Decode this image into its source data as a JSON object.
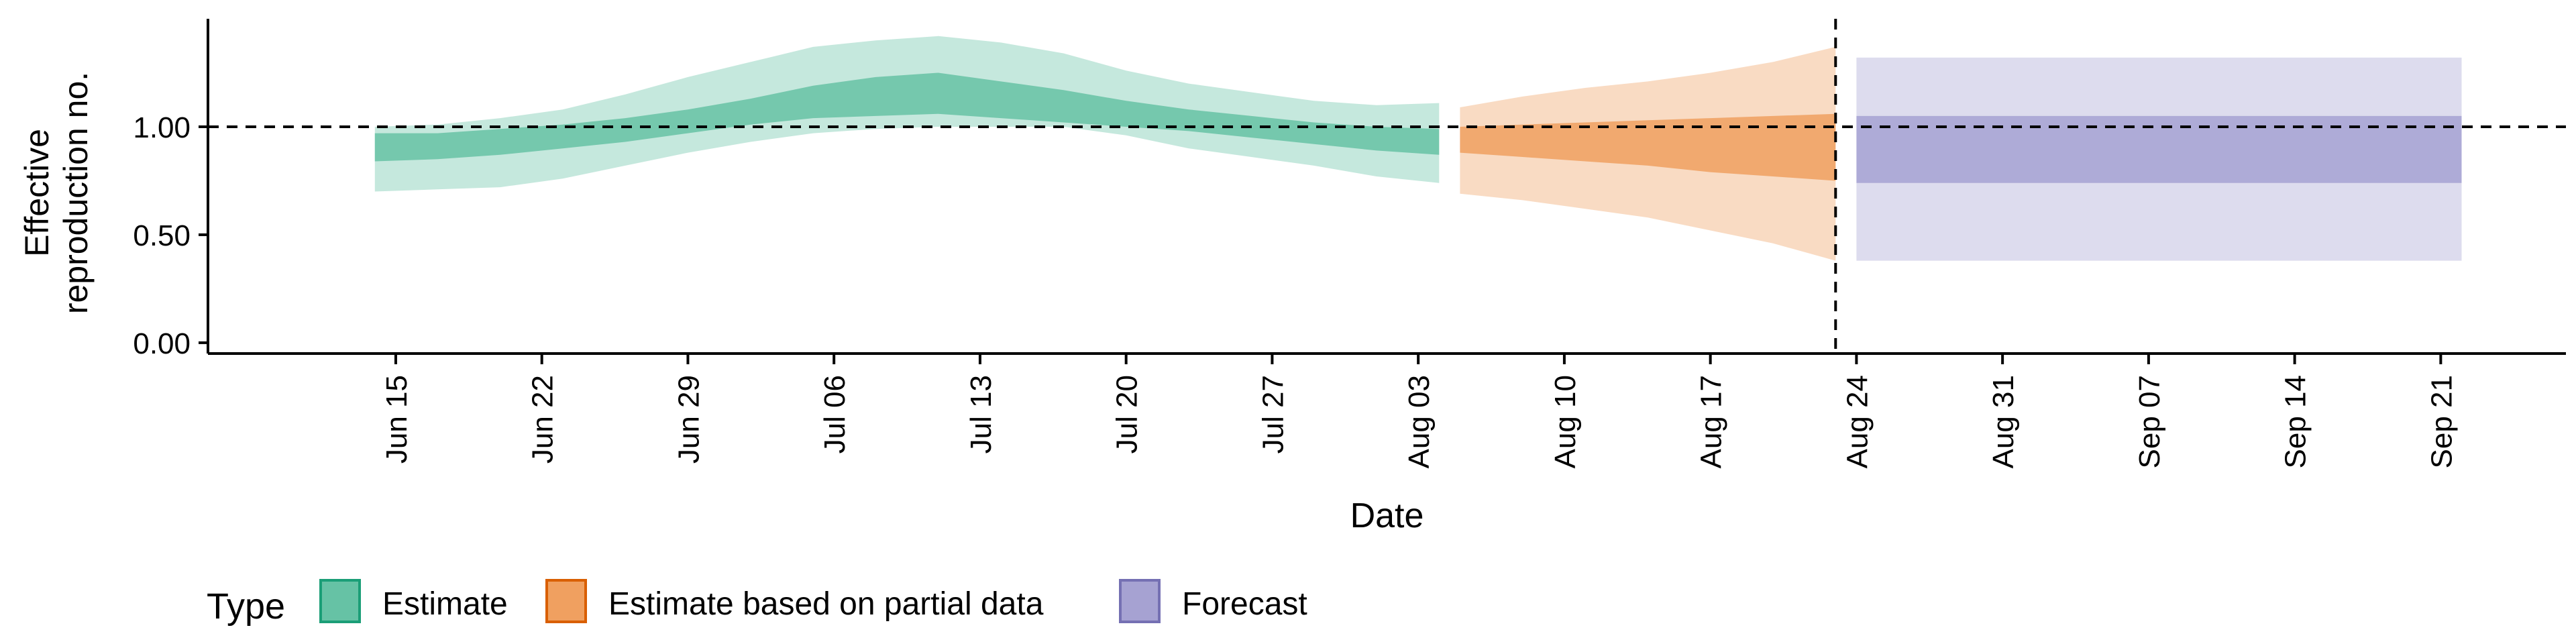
{
  "chart_data": {
    "type": "area",
    "title": "",
    "xlabel": "Date",
    "ylabel_lines": [
      "Effective",
      "reproduction no."
    ],
    "x_ticks": [
      "Jun 15",
      "Jun 22",
      "Jun 29",
      "Jul 06",
      "Jul 13",
      "Jul 20",
      "Jul 27",
      "Aug 03",
      "Aug 10",
      "Aug 17",
      "Aug 24",
      "Aug 31",
      "Sep 07",
      "Sep 14",
      "Sep 21"
    ],
    "x_tick_dates": [
      "2020-06-15",
      "2020-06-22",
      "2020-06-29",
      "2020-07-06",
      "2020-07-13",
      "2020-07-20",
      "2020-07-27",
      "2020-08-03",
      "2020-08-10",
      "2020-08-17",
      "2020-08-24",
      "2020-08-31",
      "2020-09-07",
      "2020-09-14",
      "2020-09-21"
    ],
    "xlim": [
      "2020-06-06",
      "2020-09-27"
    ],
    "y_ticks": [
      "0.00",
      "0.50",
      "1.00"
    ],
    "ylim": [
      -0.05,
      1.5
    ],
    "grid": false,
    "reference_hline": 1.0,
    "reference_vline": "2020-08-23",
    "legend": {
      "title": "Type",
      "position": "bottom-left",
      "entries": [
        {
          "label": "Estimate",
          "fill": "#66c2a5",
          "border": "#1b9e77"
        },
        {
          "label": "Estimate based on partial data",
          "fill": "#f0a060",
          "border": "#d95f02"
        },
        {
          "label": "Forecast",
          "fill": "#a6a2d2",
          "border": "#7570b3"
        }
      ]
    },
    "series": [
      {
        "type_label": "Estimate",
        "color": "#66c2a5",
        "x": [
          "2020-06-14",
          "2020-06-17",
          "2020-06-20",
          "2020-06-23",
          "2020-06-26",
          "2020-06-29",
          "2020-07-02",
          "2020-07-05",
          "2020-07-08",
          "2020-07-11",
          "2020-07-14",
          "2020-07-17",
          "2020-07-20",
          "2020-07-23",
          "2020-07-26",
          "2020-07-29",
          "2020-08-01",
          "2020-08-04"
        ],
        "outer_lower": [
          0.7,
          0.71,
          0.72,
          0.76,
          0.82,
          0.88,
          0.93,
          0.97,
          0.99,
          1.0,
          1.0,
          1.0,
          0.96,
          0.9,
          0.86,
          0.82,
          0.77,
          0.74
        ],
        "outer_upper": [
          1.0,
          1.01,
          1.04,
          1.08,
          1.15,
          1.23,
          1.3,
          1.37,
          1.4,
          1.42,
          1.39,
          1.34,
          1.26,
          1.2,
          1.16,
          1.12,
          1.1,
          1.11
        ],
        "inner_lower": [
          0.84,
          0.85,
          0.87,
          0.9,
          0.93,
          0.97,
          1.01,
          1.04,
          1.05,
          1.06,
          1.04,
          1.02,
          1.0,
          0.98,
          0.95,
          0.92,
          0.89,
          0.87
        ],
        "inner_upper": [
          0.97,
          0.97,
          0.99,
          1.01,
          1.04,
          1.08,
          1.13,
          1.19,
          1.23,
          1.25,
          1.21,
          1.17,
          1.12,
          1.08,
          1.05,
          1.02,
          1.0,
          0.99
        ]
      },
      {
        "type_label": "Estimate based on partial data",
        "color": "#f0a060",
        "x": [
          "2020-08-05",
          "2020-08-08",
          "2020-08-11",
          "2020-08-14",
          "2020-08-17",
          "2020-08-20",
          "2020-08-23"
        ],
        "outer_lower": [
          0.69,
          0.66,
          0.62,
          0.58,
          0.52,
          0.46,
          0.38
        ],
        "outer_upper": [
          1.09,
          1.14,
          1.18,
          1.21,
          1.25,
          1.3,
          1.37
        ],
        "inner_lower": [
          0.88,
          0.86,
          0.84,
          0.82,
          0.79,
          0.77,
          0.75
        ],
        "inner_upper": [
          1.0,
          1.01,
          1.02,
          1.03,
          1.04,
          1.05,
          1.06
        ]
      },
      {
        "type_label": "Forecast",
        "color": "#a6a2d2",
        "x": [
          "2020-08-24",
          "2020-09-22"
        ],
        "outer_lower": [
          0.38,
          0.38
        ],
        "outer_upper": [
          1.32,
          1.32
        ],
        "inner_lower": [
          0.74,
          0.74
        ],
        "inner_upper": [
          1.05,
          1.05
        ]
      }
    ]
  }
}
